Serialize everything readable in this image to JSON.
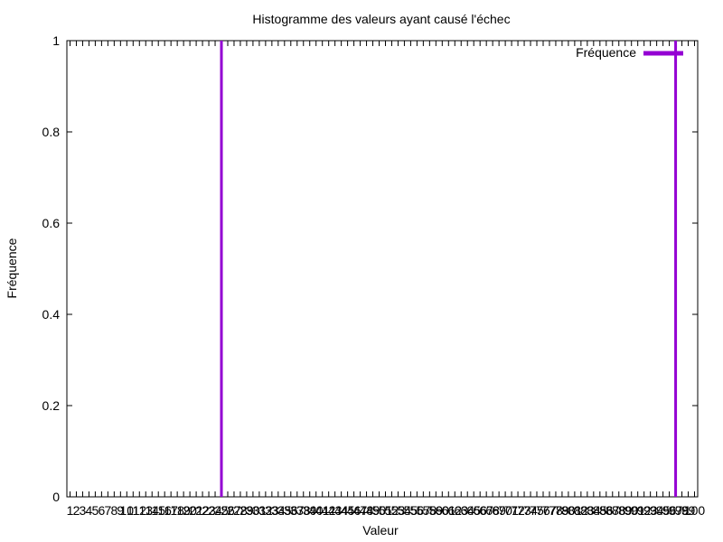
{
  "chart_data": {
    "type": "bar",
    "title": "Histogramme des valeurs ayant causé l'échec",
    "xlabel": "Valeur",
    "ylabel": "Fréquence",
    "xlim": [
      0.5,
      100.5
    ],
    "ylim": [
      0,
      1
    ],
    "yticks": [
      "0",
      "0.2",
      "0.4",
      "0.6",
      "0.8",
      "1"
    ],
    "x": [
      1,
      2,
      3,
      4,
      5,
      6,
      7,
      8,
      9,
      10,
      11,
      12,
      13,
      14,
      15,
      16,
      17,
      18,
      19,
      20,
      21,
      22,
      23,
      24,
      25,
      26,
      27,
      28,
      29,
      30,
      31,
      32,
      33,
      34,
      35,
      36,
      37,
      38,
      39,
      40,
      41,
      42,
      43,
      44,
      45,
      46,
      47,
      48,
      49,
      50,
      51,
      52,
      53,
      54,
      55,
      56,
      57,
      58,
      59,
      60,
      61,
      62,
      63,
      64,
      65,
      66,
      67,
      68,
      69,
      70,
      71,
      72,
      73,
      74,
      75,
      76,
      77,
      78,
      79,
      80,
      81,
      82,
      83,
      84,
      85,
      86,
      87,
      88,
      89,
      90,
      91,
      92,
      93,
      94,
      95,
      96,
      97,
      98,
      99,
      100
    ],
    "series": [
      {
        "name": "Fréquence",
        "color": "#9400d3",
        "x": [
          25,
          97
        ],
        "values": [
          1,
          1
        ]
      }
    ],
    "legend_position": "top-right",
    "grid": false
  }
}
